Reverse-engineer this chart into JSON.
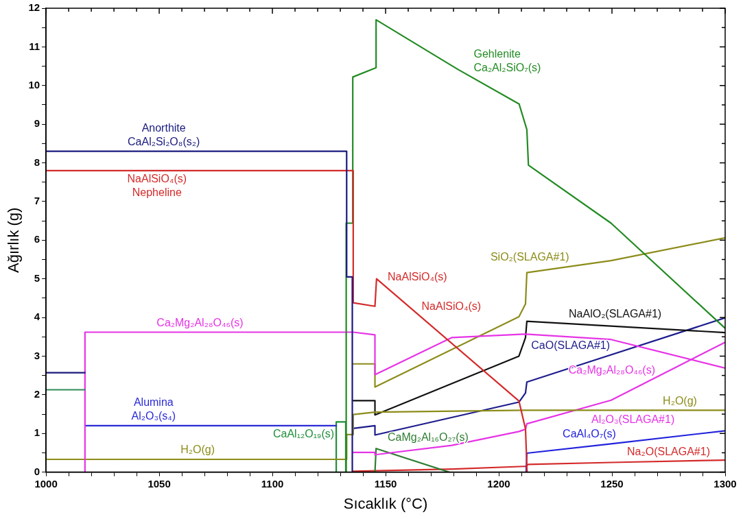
{
  "chart_data": {
    "type": "line",
    "xlabel": "Sıcaklık (°C)",
    "ylabel": "Ağırlık (g)",
    "marker": "none",
    "line_style": "solid",
    "grid": false,
    "legend": false,
    "xlim": [
      1000,
      1300
    ],
    "xticks": [
      1000,
      {
        "value": 1010,
        "label": null
      },
      {
        "value": 1020,
        "label": null
      },
      {
        "value": 1030,
        "label": null
      },
      {
        "value": 1040,
        "label": null
      },
      1050,
      {
        "value": 1060,
        "label": null
      },
      {
        "value": 1070,
        "label": null
      },
      {
        "value": 1080,
        "label": null
      },
      {
        "value": 1090,
        "label": null
      },
      1100,
      {
        "value": 1110,
        "label": null
      },
      {
        "value": 1120,
        "label": null
      },
      {
        "value": 1130,
        "label": null
      },
      {
        "value": 1140,
        "label": null
      },
      1150,
      {
        "value": 1160,
        "label": null
      },
      {
        "value": 1170,
        "label": null
      },
      {
        "value": 1180,
        "label": null
      },
      {
        "value": 1190,
        "label": null
      },
      1200,
      {
        "value": 1210,
        "label": null
      },
      {
        "value": 1220,
        "label": null
      },
      {
        "value": 1230,
        "label": null
      },
      {
        "value": 1240,
        "label": null
      },
      1250,
      {
        "value": 1260,
        "label": null
      },
      {
        "value": 1270,
        "label": null
      },
      {
        "value": 1280,
        "label": null
      },
      {
        "value": 1290,
        "label": null
      },
      1300
    ],
    "ylim": [
      0,
      12
    ],
    "yticks": [
      0,
      {
        "value": 0.5,
        "label": null
      },
      1,
      {
        "value": 1.5,
        "label": null
      },
      2,
      {
        "value": 2.5,
        "label": null
      },
      3,
      {
        "value": 3.5,
        "label": null
      },
      4,
      {
        "value": 4.5,
        "label": null
      },
      5,
      {
        "value": 5.5,
        "label": null
      },
      6,
      {
        "value": 6.5,
        "label": null
      },
      7,
      {
        "value": 7.5,
        "label": null
      },
      8,
      {
        "value": 8.5,
        "label": null
      },
      9,
      {
        "value": 9.5,
        "label": null
      },
      10,
      {
        "value": 10.5,
        "label": null
      },
      11,
      {
        "value": 11.5,
        "label": null
      },
      12
    ],
    "series": [
      {
        "color": "#1a1a7e",
        "x": [
          1000,
          1132.8,
          1132.8,
          1135.3,
          1135.3
        ],
        "values": [
          8.3,
          8.3,
          5.05,
          5.05,
          0
        ]
      },
      {
        "color": "#d42a2a",
        "x": [
          1000,
          1135.7,
          1135.7,
          1145.3,
          1146,
          1208.9,
          1211.8,
          1212.5
        ],
        "values": [
          7.8,
          7.8,
          4.38,
          4.29,
          5.0,
          1.84,
          1.12,
          0
        ]
      },
      {
        "color": "#228b22",
        "x": [
          1132.6,
          1132.6,
          1135.5,
          1135.5,
          1145.8,
          1145.8,
          1181.9,
          1209,
          1212.4,
          1213.1,
          1249.6,
          1300
        ],
        "values": [
          0,
          6.44,
          6.44,
          10.22,
          10.46,
          11.7,
          10.42,
          9.52,
          8.86,
          7.94,
          6.44,
          3.72
        ]
      },
      {
        "color": "#1a1a7e",
        "x": [
          1000,
          1017.2
        ],
        "values": [
          2.57,
          2.57
        ]
      },
      {
        "color": "#2e8b57",
        "x": [
          1000,
          1017.2
        ],
        "values": [
          2.13,
          2.13
        ]
      },
      {
        "color": "#e633e6",
        "x": [
          1017.2,
          1017.2,
          1135.7,
          1145.3,
          1145.3,
          1179.2,
          1212,
          1249.6,
          1300
        ],
        "values": [
          0,
          3.62,
          3.62,
          3.55,
          2.52,
          3.48,
          3.57,
          3.43,
          2.69
        ]
      },
      {
        "color": "#2a2ad6",
        "x": [
          1017.2,
          1128.2
        ],
        "values": [
          1.2,
          1.2
        ]
      },
      {
        "color": "#8c8c1a",
        "x": [
          1000,
          1132.8,
          1132.8,
          1135.7,
          1135.7,
          1145.3,
          1212,
          1300
        ],
        "values": [
          0.33,
          0.33,
          0.97,
          0.97,
          1.49,
          1.55,
          1.6,
          1.6
        ]
      },
      {
        "color": "#1f8f3a",
        "x": [
          1128.2,
          1128.2,
          1132.4,
          1132.4
        ],
        "values": [
          0,
          1.3,
          1.3,
          0
        ]
      },
      {
        "color": "#8c8c1a",
        "x": [
          1135.7,
          1145.3,
          1145.3,
          1208.9,
          1211.8,
          1212.4,
          1249.6,
          1300
        ],
        "values": [
          2.8,
          2.8,
          2.2,
          4.02,
          4.35,
          5.16,
          5.47,
          6.06
        ]
      },
      {
        "color": "#111111",
        "x": [
          1135.7,
          1145.3,
          1145.3,
          1208.9,
          1211.8,
          1212.4,
          1300
        ],
        "values": [
          1.85,
          1.85,
          1.48,
          3.0,
          3.48,
          3.9,
          3.61
        ]
      },
      {
        "color": "#1c1c8c",
        "x": [
          1135.7,
          1145.3,
          1145.3,
          1208.9,
          1211.8,
          1212.4,
          1300
        ],
        "values": [
          1.13,
          1.2,
          0.96,
          1.81,
          2.05,
          2.33,
          3.99
        ]
      },
      {
        "color": "#e633e6",
        "x": [
          1135.7,
          1145.3,
          1145.3,
          1179.2,
          1208.9,
          1211.8,
          1212.4,
          1249.6,
          1300
        ],
        "values": [
          0.51,
          0.51,
          0.45,
          0.69,
          1.05,
          1.11,
          1.25,
          1.86,
          3.36
        ]
      },
      {
        "color": "#2e7d32",
        "x": [
          1145.3,
          1145.8,
          1178
        ],
        "values": [
          0,
          0.61,
          0
        ]
      },
      {
        "color": "#2222dd",
        "x": [
          1212.1,
          1212.4,
          1249.6,
          1300
        ],
        "values": [
          0,
          0.49,
          0.73,
          1.07
        ]
      },
      {
        "color": "#d42a2a",
        "x": [
          1135.7,
          1180,
          1212,
          1213,
          1250,
          1300
        ],
        "values": [
          0.02,
          0.08,
          0.15,
          0.2,
          0.25,
          0.31
        ]
      }
    ],
    "annotations": [
      {
        "text": "Anorthite",
        "x": 1052,
        "y": 8.3
      },
      {
        "text": "CaAl₂Si₂O₈(s₂)",
        "x": 1052,
        "y": 8.3
      },
      {
        "text": "NaAlSiO₄(s)",
        "x": 1049,
        "y": 7.8
      },
      {
        "text": "Nepheline",
        "x": 1049,
        "y": 7.8
      },
      {
        "text": "Ca₂Mg₂Al₂₈O₄₆(s)",
        "x": 1068,
        "y": 3.62
      },
      {
        "text": "Alumina",
        "x": 1047.5,
        "y": 1.2
      },
      {
        "text": "Al₂O₃(s₄)",
        "x": 1047.5,
        "y": 1.2
      },
      {
        "text": "H₂O(g)",
        "x": 1067,
        "y": 0.33
      },
      {
        "text": "CaAl₁₂O₁₉(s)",
        "x": 1128.2,
        "y": 0.75
      },
      {
        "text": "Gehlenite",
        "x": 1188,
        "y": 10.22
      },
      {
        "text": "Ca₂Al₂SiO₇(s)",
        "x": 1188,
        "y": 10.22
      },
      {
        "text": "SiO₂(SLAGA#1)",
        "x": 1232,
        "y": 5.32
      },
      {
        "text": "NaAlSiO₄(s)",
        "x": 1150,
        "y": 4.8
      },
      {
        "text": "NaAlSiO₄(s)",
        "x": 1165,
        "y": 4.05
      },
      {
        "text": "NaAlO₂(SLAGA#1)",
        "x": 1230,
        "y": 3.84
      },
      {
        "text": "Ca₂Mg₂Al₂₈O₄₆(s)",
        "x": 1270,
        "y": 3.13
      },
      {
        "text": "CaO(SLAGA#1)",
        "x": 1250,
        "y": 3.04
      },
      {
        "text": "Al₂O₃(SLAGA#1)",
        "x": 1240,
        "y": 1.7
      },
      {
        "text": "H₂O(g)",
        "x": 1280,
        "y": 1.6
      },
      {
        "text": "CaAl₄O₇(s)",
        "x": 1240,
        "y": 0.75
      },
      {
        "text": "Na₂O(SLAGA#1)",
        "x": 1275,
        "y": 0.28
      },
      {
        "text": "CaMg₂Al₁₆O₂₇(s)",
        "x": 1150,
        "y": 0.53
      }
    ]
  }
}
